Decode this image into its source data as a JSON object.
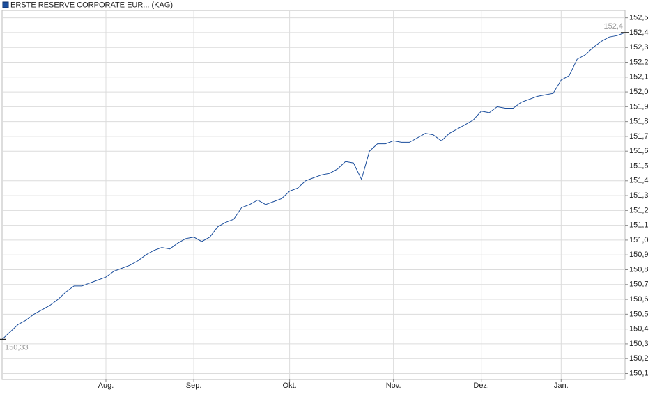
{
  "chart_data": {
    "type": "line",
    "title": "ERSTE RESERVE CORPORATE EUR... (KAG)",
    "categories": [
      null,
      null,
      null,
      null,
      null,
      null,
      null,
      null,
      null,
      null,
      null,
      null,
      null,
      "Aug.",
      null,
      null,
      null,
      null,
      null,
      null,
      null,
      null,
      null,
      null,
      "Sep.",
      null,
      null,
      null,
      null,
      null,
      null,
      null,
      null,
      null,
      null,
      null,
      "Okt.",
      null,
      null,
      null,
      null,
      null,
      null,
      null,
      null,
      null,
      null,
      null,
      null,
      "Nov.",
      null,
      null,
      null,
      null,
      null,
      null,
      null,
      null,
      null,
      null,
      "Dez.",
      null,
      null,
      null,
      null,
      null,
      null,
      null,
      null,
      null,
      "Jan.",
      null,
      null,
      null,
      null,
      null,
      null,
      null,
      null
    ],
    "series": [
      {
        "name": "ERSTE RESERVE CORPORATE EUR... (KAG)",
        "color": "#1a4d9c",
        "values": [
          150.33,
          150.38,
          150.43,
          150.46,
          150.5,
          150.53,
          150.56,
          150.6,
          150.65,
          150.69,
          150.69,
          150.71,
          150.73,
          150.75,
          150.79,
          150.81,
          150.83,
          150.86,
          150.9,
          150.93,
          150.95,
          150.94,
          150.98,
          151.01,
          151.02,
          150.99,
          151.02,
          151.09,
          151.12,
          151.14,
          151.22,
          151.24,
          151.27,
          151.24,
          151.26,
          151.28,
          151.33,
          151.35,
          151.4,
          151.42,
          151.44,
          151.45,
          151.48,
          151.53,
          151.52,
          151.41,
          151.6,
          151.65,
          151.65,
          151.67,
          151.66,
          151.66,
          151.69,
          151.72,
          151.71,
          151.67,
          151.72,
          151.75,
          151.78,
          151.81,
          151.87,
          151.86,
          151.9,
          151.89,
          151.89,
          151.93,
          151.95,
          151.97,
          151.98,
          151.99,
          152.08,
          152.11,
          152.22,
          152.25,
          152.3,
          152.34,
          152.37,
          152.38,
          152.4
        ],
        "value_labels": [
          "150,33",
          null,
          null,
          null,
          null,
          null,
          null,
          null,
          null,
          null,
          null,
          null,
          null,
          null,
          null,
          null,
          null,
          null,
          null,
          null,
          null,
          null,
          null,
          null,
          null,
          null,
          null,
          null,
          null,
          null,
          null,
          null,
          null,
          null,
          null,
          null,
          null,
          null,
          null,
          null,
          null,
          null,
          null,
          null,
          null,
          null,
          null,
          null,
          null,
          null,
          null,
          null,
          null,
          null,
          null,
          null,
          null,
          null,
          null,
          null,
          null,
          null,
          null,
          null,
          null,
          null,
          null,
          null,
          null,
          null,
          null,
          null,
          null,
          null,
          null,
          null,
          null,
          null,
          "152,4"
        ]
      }
    ],
    "ylim": [
      150.06,
      152.55
    ],
    "yticks": [
      {
        "value": 150.1,
        "label": "150,1"
      },
      {
        "value": 150.2,
        "label": "150,2"
      },
      {
        "value": 150.3,
        "label": "150,3"
      },
      {
        "value": 150.4,
        "label": "150,4"
      },
      {
        "value": 150.5,
        "label": "150,5"
      },
      {
        "value": 150.6,
        "label": "150,6"
      },
      {
        "value": 150.7,
        "label": "150,7"
      },
      {
        "value": 150.8,
        "label": "150,8"
      },
      {
        "value": 150.9,
        "label": "150,9"
      },
      {
        "value": 151.0,
        "label": "151,0"
      },
      {
        "value": 151.1,
        "label": "151,1"
      },
      {
        "value": 151.2,
        "label": "151,2"
      },
      {
        "value": 151.3,
        "label": "151,3"
      },
      {
        "value": 151.4,
        "label": "151,4"
      },
      {
        "value": 151.5,
        "label": "151,5"
      },
      {
        "value": 151.6,
        "label": "151,6"
      },
      {
        "value": 151.7,
        "label": "151,7"
      },
      {
        "value": 151.8,
        "label": "151,8"
      },
      {
        "value": 151.9,
        "label": "151,9"
      },
      {
        "value": 152.0,
        "label": "152,0"
      },
      {
        "value": 152.1,
        "label": "152,1"
      },
      {
        "value": 152.2,
        "label": "152,2"
      },
      {
        "value": 152.3,
        "label": "152,3"
      },
      {
        "value": 152.4,
        "label": "152,4"
      },
      {
        "value": 152.5,
        "label": "152,5"
      }
    ],
    "grid": true
  }
}
